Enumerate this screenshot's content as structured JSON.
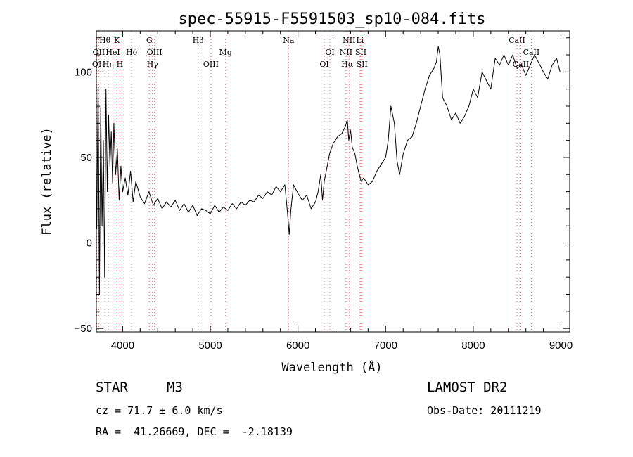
{
  "chart_data": {
    "type": "line",
    "title": "spec-55915-F5591503_sp10-084.fits",
    "xlabel": "Wavelength (Å)",
    "ylabel": "Flux (relative)",
    "xlim": [
      3700,
      9100
    ],
    "ylim": [
      -52,
      124
    ],
    "xticks": [
      4000,
      5000,
      6000,
      7000,
      8000,
      9000
    ],
    "yticks": [
      -50,
      0,
      50,
      100
    ],
    "grid": false,
    "series": [
      {
        "x": [
          3705,
          3720,
          3735,
          3750,
          3765,
          3780,
          3795,
          3810,
          3825,
          3840,
          3855,
          3870,
          3885,
          3900,
          3920,
          3940,
          3960,
          3980,
          4000,
          4030,
          4060,
          4090,
          4120,
          4150,
          4200,
          4250,
          4300,
          4350,
          4400,
          4450,
          4500,
          4550,
          4600,
          4650,
          4700,
          4750,
          4800,
          4850,
          4900,
          4950,
          5000,
          5050,
          5100,
          5150,
          5200,
          5250,
          5300,
          5350,
          5400,
          5450,
          5500,
          5550,
          5600,
          5650,
          5700,
          5750,
          5800,
          5850,
          5880,
          5900,
          5920,
          5950,
          6000,
          6050,
          6100,
          6150,
          6200,
          6230,
          6260,
          6280,
          6300,
          6330,
          6360,
          6400,
          6450,
          6500,
          6540,
          6563,
          6580,
          6600,
          6620,
          6650,
          6680,
          6700,
          6720,
          6750,
          6800,
          6850,
          6900,
          6950,
          7000,
          7030,
          7060,
          7100,
          7130,
          7160,
          7200,
          7250,
          7300,
          7350,
          7400,
          7450,
          7500,
          7550,
          7580,
          7600,
          7620,
          7650,
          7700,
          7750,
          7800,
          7850,
          7900,
          7950,
          8000,
          8050,
          8100,
          8150,
          8200,
          8250,
          8300,
          8350,
          8400,
          8450,
          8500,
          8550,
          8600,
          8650,
          8700,
          8750,
          8800,
          8850,
          8900,
          8950,
          8990
        ],
        "y": [
          8,
          95,
          -30,
          80,
          10,
          60,
          -20,
          90,
          30,
          75,
          45,
          65,
          35,
          70,
          40,
          55,
          25,
          45,
          30,
          38,
          28,
          42,
          24,
          36,
          27,
          23,
          30,
          22,
          26,
          20,
          24,
          21,
          25,
          19,
          23,
          18,
          22,
          16,
          20,
          19,
          17,
          22,
          18,
          21,
          19,
          23,
          20,
          24,
          22,
          25,
          24,
          28,
          26,
          30,
          28,
          33,
          30,
          34,
          18,
          5,
          20,
          34,
          29,
          25,
          28,
          20,
          24,
          30,
          40,
          25,
          36,
          44,
          52,
          58,
          62,
          64,
          68,
          72,
          60,
          66,
          56,
          52,
          44,
          40,
          36,
          38,
          34,
          36,
          42,
          46,
          50,
          60,
          80,
          70,
          48,
          40,
          52,
          60,
          62,
          70,
          80,
          90,
          98,
          102,
          106,
          115,
          110,
          85,
          80,
          72,
          76,
          70,
          74,
          80,
          90,
          85,
          100,
          95,
          90,
          108,
          104,
          110,
          104,
          110,
          102,
          104,
          98,
          104,
          110,
          105,
          100,
          96,
          104,
          108,
          100
        ]
      }
    ],
    "spectral_lines": [
      {
        "name": "Hθ",
        "wl": 3798,
        "row": 0
      },
      {
        "name": "K",
        "wl": 3934,
        "row": 0
      },
      {
        "name": "G",
        "wl": 4304,
        "row": 0
      },
      {
        "name": "Hβ",
        "wl": 4861,
        "row": 0
      },
      {
        "name": "Na",
        "wl": 5893,
        "row": 0
      },
      {
        "name": "NII",
        "wl": 6583,
        "row": 0
      },
      {
        "name": "Li",
        "wl": 6708,
        "row": 0
      },
      {
        "name": "CaII",
        "wl": 8498,
        "row": 0
      },
      {
        "name": "OII",
        "wl": 3727,
        "row": 1
      },
      {
        "name": "HeI",
        "wl": 3889,
        "row": 1
      },
      {
        "name": "Hδ",
        "wl": 4102,
        "row": 1
      },
      {
        "name": "OIII",
        "wl": 4363,
        "row": 1
      },
      {
        "name": "Mg",
        "wl": 5175,
        "row": 1
      },
      {
        "name": "OI",
        "wl": 6364,
        "row": 1
      },
      {
        "name": "NII",
        "wl": 6548,
        "row": 1
      },
      {
        "name": "SII",
        "wl": 6717,
        "row": 1
      },
      {
        "name": "CaII",
        "wl": 8662,
        "row": 1
      },
      {
        "name": "OI",
        "wl": 3705,
        "row": 2
      },
      {
        "name": "Hη",
        "wl": 3835,
        "row": 2
      },
      {
        "name": "H",
        "wl": 3968,
        "row": 2
      },
      {
        "name": "Hγ",
        "wl": 4340,
        "row": 2
      },
      {
        "name": "OIII",
        "wl": 5007,
        "row": 2
      },
      {
        "name": "OI",
        "wl": 6300,
        "row": 2
      },
      {
        "name": "Hα",
        "wl": 6563,
        "row": 2
      },
      {
        "name": "SII",
        "wl": 6731,
        "row": 2
      },
      {
        "name": "CaII",
        "wl": 8542,
        "row": 2
      }
    ]
  },
  "info": {
    "object_class": "STAR",
    "subclass": "M3",
    "survey": "LAMOST DR2",
    "redshift": "cz = 71.7 ± 6.0 km/s",
    "obs_date": "Obs-Date: 20111219",
    "coords": "RA =  41.26669, DEC =  -2.18139"
  }
}
